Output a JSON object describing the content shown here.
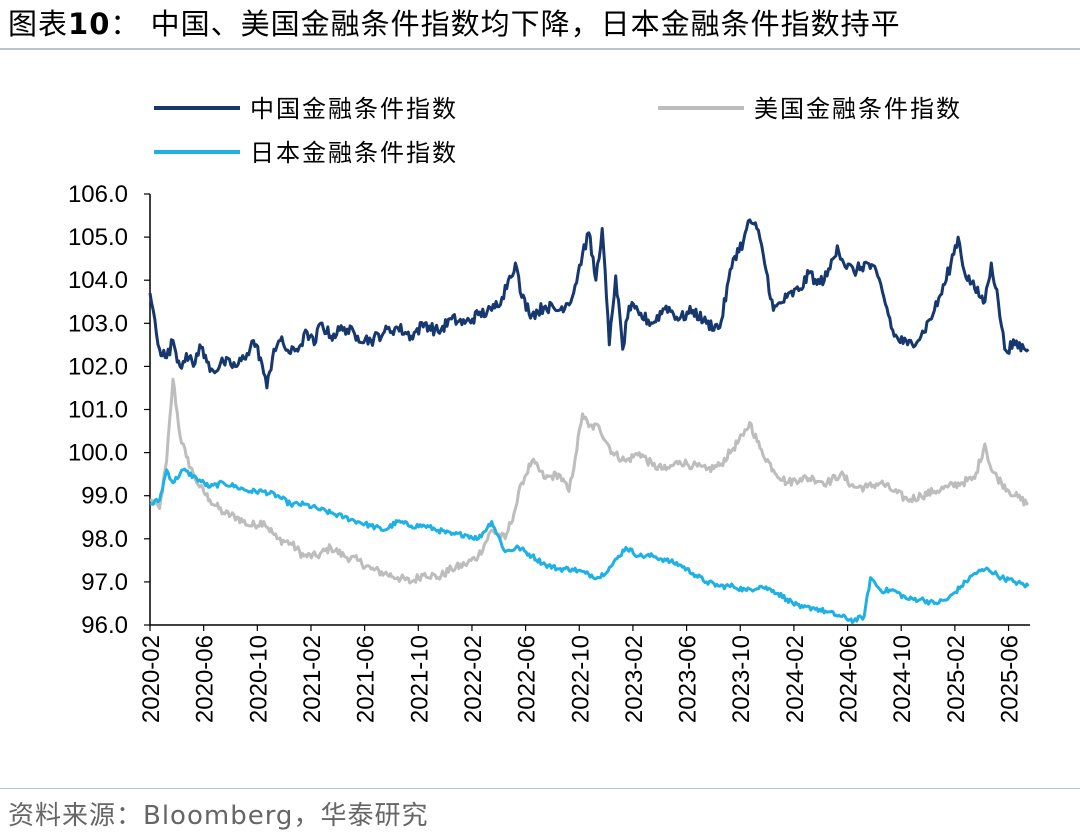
{
  "header": {
    "prefix": "图表",
    "number": "10",
    "colon": "：",
    "text": "中国、美国金融条件指数均下降，日本金融条件指数持平"
  },
  "footer": {
    "source": "资料来源：Bloomberg，华泰研究"
  },
  "chart_data": {
    "type": "line",
    "title": "图表10：中国、美国金融条件指数均下降，日本金融条件指数持平",
    "xlabel": "",
    "ylabel": "",
    "ylim": [
      96.0,
      106.0
    ],
    "yticks": [
      "96.0",
      "97.0",
      "98.0",
      "99.0",
      "100.0",
      "101.0",
      "102.0",
      "103.0",
      "104.0",
      "105.0",
      "106.0"
    ],
    "xticks": [
      "2020-02",
      "2020-06",
      "2020-10",
      "2021-02",
      "2021-06",
      "2021-10",
      "2022-02",
      "2022-06",
      "2022-10",
      "2023-02",
      "2023-06",
      "2023-10",
      "2024-02",
      "2024-06",
      "2024-10",
      "2025-02",
      "2025-06"
    ],
    "x_start": "2020-02",
    "x_end": "2025-07",
    "legend_position": "top",
    "series": [
      {
        "name": "中国金融条件指数",
        "color": "#16386e",
        "points": [
          [
            "2020-02",
            103.7
          ],
          [
            "2020-02",
            102.4
          ],
          [
            "2020-03",
            102.2
          ],
          [
            "2020-03",
            102.6
          ],
          [
            "2020-04",
            102.0
          ],
          [
            "2020-04",
            102.3
          ],
          [
            "2020-05",
            102.0
          ],
          [
            "2020-05",
            102.5
          ],
          [
            "2020-06",
            102.1
          ],
          [
            "2020-06",
            101.9
          ],
          [
            "2020-07",
            102.1
          ],
          [
            "2020-08",
            102.0
          ],
          [
            "2020-09",
            102.3
          ],
          [
            "2020-09",
            102.6
          ],
          [
            "2020-10",
            102.2
          ],
          [
            "2020-10",
            101.5
          ],
          [
            "2020-11",
            102.4
          ],
          [
            "2020-11",
            102.6
          ],
          [
            "2020-12",
            102.3
          ],
          [
            "2021-01",
            102.5
          ],
          [
            "2021-01",
            102.8
          ],
          [
            "2021-02",
            102.5
          ],
          [
            "2021-02",
            103.0
          ],
          [
            "2021-03",
            102.7
          ],
          [
            "2021-04",
            102.9
          ],
          [
            "2021-05",
            102.7
          ],
          [
            "2021-06",
            102.6
          ],
          [
            "2021-07",
            102.8
          ],
          [
            "2021-08",
            102.9
          ],
          [
            "2021-09",
            102.7
          ],
          [
            "2021-10",
            103.0
          ],
          [
            "2021-11",
            102.8
          ],
          [
            "2021-12",
            103.1
          ],
          [
            "2022-01",
            103.0
          ],
          [
            "2022-02",
            103.2
          ],
          [
            "2022-03",
            103.3
          ],
          [
            "2022-04",
            103.6
          ],
          [
            "2022-04",
            104.0
          ],
          [
            "2022-05",
            104.4
          ],
          [
            "2022-05",
            103.6
          ],
          [
            "2022-06",
            103.2
          ],
          [
            "2022-07",
            103.4
          ],
          [
            "2022-08",
            103.3
          ],
          [
            "2022-09",
            103.6
          ],
          [
            "2022-10",
            104.6
          ],
          [
            "2022-10",
            105.1
          ],
          [
            "2022-11",
            104.0
          ],
          [
            "2022-11",
            105.2
          ],
          [
            "2022-12",
            102.5
          ],
          [
            "2022-12",
            104.1
          ],
          [
            "2023-01",
            102.4
          ],
          [
            "2023-01",
            103.4
          ],
          [
            "2023-02",
            103.2
          ],
          [
            "2023-03",
            103.0
          ],
          [
            "2023-04",
            103.4
          ],
          [
            "2023-05",
            103.1
          ],
          [
            "2023-06",
            103.3
          ],
          [
            "2023-07",
            103.0
          ],
          [
            "2023-08",
            102.9
          ],
          [
            "2023-09",
            104.5
          ],
          [
            "2023-10",
            104.9
          ],
          [
            "2023-10",
            105.4
          ],
          [
            "2023-11",
            105.2
          ],
          [
            "2023-11",
            104.6
          ],
          [
            "2023-12",
            103.3
          ],
          [
            "2024-01",
            103.6
          ],
          [
            "2024-02",
            103.8
          ],
          [
            "2024-03",
            104.2
          ],
          [
            "2024-03",
            103.9
          ],
          [
            "2024-04",
            104.1
          ],
          [
            "2024-05",
            104.8
          ],
          [
            "2024-05",
            104.4
          ],
          [
            "2024-06",
            104.2
          ],
          [
            "2024-07",
            104.4
          ],
          [
            "2024-08",
            104.1
          ],
          [
            "2024-08",
            103.6
          ],
          [
            "2024-09",
            102.7
          ],
          [
            "2024-10",
            102.5
          ],
          [
            "2024-11",
            102.7
          ],
          [
            "2024-12",
            103.3
          ],
          [
            "2025-01",
            103.9
          ],
          [
            "2025-01",
            104.4
          ],
          [
            "2025-02",
            105.0
          ],
          [
            "2025-02",
            104.2
          ],
          [
            "2025-03",
            103.8
          ],
          [
            "2025-04",
            103.5
          ],
          [
            "2025-04",
            104.4
          ],
          [
            "2025-05",
            103.5
          ],
          [
            "2025-05",
            102.4
          ],
          [
            "2025-06",
            102.5
          ],
          [
            "2025-07",
            102.4
          ]
        ]
      },
      {
        "name": "美国金融条件指数",
        "color": "#bdbdbd",
        "points": [
          [
            "2020-02",
            98.9
          ],
          [
            "2020-02",
            98.7
          ],
          [
            "2020-03",
            99.8
          ],
          [
            "2020-03",
            101.7
          ],
          [
            "2020-04",
            100.4
          ],
          [
            "2020-04",
            99.9
          ],
          [
            "2020-05",
            99.5
          ],
          [
            "2020-05",
            99.2
          ],
          [
            "2020-06",
            98.9
          ],
          [
            "2020-07",
            98.6
          ],
          [
            "2020-08",
            98.5
          ],
          [
            "2020-09",
            98.3
          ],
          [
            "2020-10",
            98.4
          ],
          [
            "2020-11",
            98.0
          ],
          [
            "2020-12",
            97.9
          ],
          [
            "2021-01",
            97.6
          ],
          [
            "2021-02",
            97.6
          ],
          [
            "2021-03",
            97.8
          ],
          [
            "2021-04",
            97.6
          ],
          [
            "2021-05",
            97.5
          ],
          [
            "2021-06",
            97.3
          ],
          [
            "2021-07",
            97.2
          ],
          [
            "2021-08",
            97.1
          ],
          [
            "2021-09",
            97.0
          ],
          [
            "2021-10",
            97.2
          ],
          [
            "2021-11",
            97.1
          ],
          [
            "2021-12",
            97.3
          ],
          [
            "2022-01",
            97.4
          ],
          [
            "2022-02",
            97.6
          ],
          [
            "2022-03",
            98.2
          ],
          [
            "2022-04",
            98.0
          ],
          [
            "2022-05",
            98.7
          ],
          [
            "2022-05",
            99.3
          ],
          [
            "2022-06",
            99.8
          ],
          [
            "2022-07",
            99.4
          ],
          [
            "2022-08",
            99.5
          ],
          [
            "2022-09",
            99.1
          ],
          [
            "2022-09",
            99.9
          ],
          [
            "2022-10",
            100.9
          ],
          [
            "2022-10",
            100.6
          ],
          [
            "2022-11",
            100.6
          ],
          [
            "2022-12",
            100.0
          ],
          [
            "2023-01",
            99.8
          ],
          [
            "2023-02",
            100.0
          ],
          [
            "2023-03",
            99.7
          ],
          [
            "2023-04",
            99.6
          ],
          [
            "2023-05",
            99.8
          ],
          [
            "2023-06",
            99.7
          ],
          [
            "2023-07",
            99.6
          ],
          [
            "2023-08",
            99.7
          ],
          [
            "2023-09",
            100.1
          ],
          [
            "2023-10",
            100.4
          ],
          [
            "2023-10",
            100.7
          ],
          [
            "2023-11",
            100.1
          ],
          [
            "2023-12",
            99.6
          ],
          [
            "2024-01",
            99.3
          ],
          [
            "2024-02",
            99.4
          ],
          [
            "2024-03",
            99.4
          ],
          [
            "2024-04",
            99.3
          ],
          [
            "2024-05",
            99.5
          ],
          [
            "2024-06",
            99.2
          ],
          [
            "2024-07",
            99.2
          ],
          [
            "2024-08",
            99.3
          ],
          [
            "2024-09",
            99.1
          ],
          [
            "2024-10",
            98.9
          ],
          [
            "2024-11",
            99.0
          ],
          [
            "2024-12",
            99.1
          ],
          [
            "2025-01",
            99.2
          ],
          [
            "2025-02",
            99.3
          ],
          [
            "2025-03",
            99.4
          ],
          [
            "2025-04",
            100.2
          ],
          [
            "2025-04",
            99.6
          ],
          [
            "2025-05",
            99.3
          ],
          [
            "2025-06",
            99.0
          ],
          [
            "2025-07",
            98.8
          ]
        ]
      },
      {
        "name": "日本金融条件指数",
        "color": "#1fb1e4",
        "points": [
          [
            "2020-02",
            98.8
          ],
          [
            "2020-02",
            98.9
          ],
          [
            "2020-03",
            99.6
          ],
          [
            "2020-03",
            99.3
          ],
          [
            "2020-04",
            99.6
          ],
          [
            "2020-05",
            99.4
          ],
          [
            "2020-06",
            99.2
          ],
          [
            "2020-07",
            99.3
          ],
          [
            "2020-08",
            99.2
          ],
          [
            "2020-09",
            99.1
          ],
          [
            "2020-10",
            99.1
          ],
          [
            "2020-11",
            99.0
          ],
          [
            "2020-12",
            98.8
          ],
          [
            "2021-01",
            98.8
          ],
          [
            "2021-02",
            98.7
          ],
          [
            "2021-03",
            98.6
          ],
          [
            "2021-04",
            98.5
          ],
          [
            "2021-05",
            98.4
          ],
          [
            "2021-06",
            98.3
          ],
          [
            "2021-07",
            98.2
          ],
          [
            "2021-08",
            98.4
          ],
          [
            "2021-09",
            98.3
          ],
          [
            "2021-10",
            98.3
          ],
          [
            "2021-11",
            98.2
          ],
          [
            "2021-12",
            98.1
          ],
          [
            "2022-01",
            98.1
          ],
          [
            "2022-02",
            98.0
          ],
          [
            "2022-03",
            98.4
          ],
          [
            "2022-04",
            97.7
          ],
          [
            "2022-05",
            97.8
          ],
          [
            "2022-06",
            97.6
          ],
          [
            "2022-07",
            97.4
          ],
          [
            "2022-08",
            97.3
          ],
          [
            "2022-09",
            97.3
          ],
          [
            "2022-10",
            97.2
          ],
          [
            "2022-11",
            97.1
          ],
          [
            "2022-12",
            97.4
          ],
          [
            "2023-01",
            97.8
          ],
          [
            "2023-02",
            97.6
          ],
          [
            "2023-03",
            97.6
          ],
          [
            "2023-04",
            97.5
          ],
          [
            "2023-05",
            97.4
          ],
          [
            "2023-06",
            97.2
          ],
          [
            "2023-07",
            97.0
          ],
          [
            "2023-08",
            96.9
          ],
          [
            "2023-09",
            96.9
          ],
          [
            "2023-10",
            96.8
          ],
          [
            "2023-11",
            96.9
          ],
          [
            "2023-12",
            96.8
          ],
          [
            "2024-01",
            96.6
          ],
          [
            "2024-02",
            96.4
          ],
          [
            "2024-03",
            96.4
          ],
          [
            "2024-04",
            96.3
          ],
          [
            "2024-05",
            96.2
          ],
          [
            "2024-06",
            96.1
          ],
          [
            "2024-07",
            96.2
          ],
          [
            "2024-07",
            97.1
          ],
          [
            "2024-08",
            96.8
          ],
          [
            "2024-09",
            96.8
          ],
          [
            "2024-10",
            96.6
          ],
          [
            "2024-11",
            96.6
          ],
          [
            "2024-12",
            96.5
          ],
          [
            "2025-01",
            96.6
          ],
          [
            "2025-02",
            96.9
          ],
          [
            "2025-03",
            97.2
          ],
          [
            "2025-04",
            97.3
          ],
          [
            "2025-05",
            97.1
          ],
          [
            "2025-06",
            97.0
          ],
          [
            "2025-07",
            96.9
          ]
        ]
      }
    ]
  }
}
